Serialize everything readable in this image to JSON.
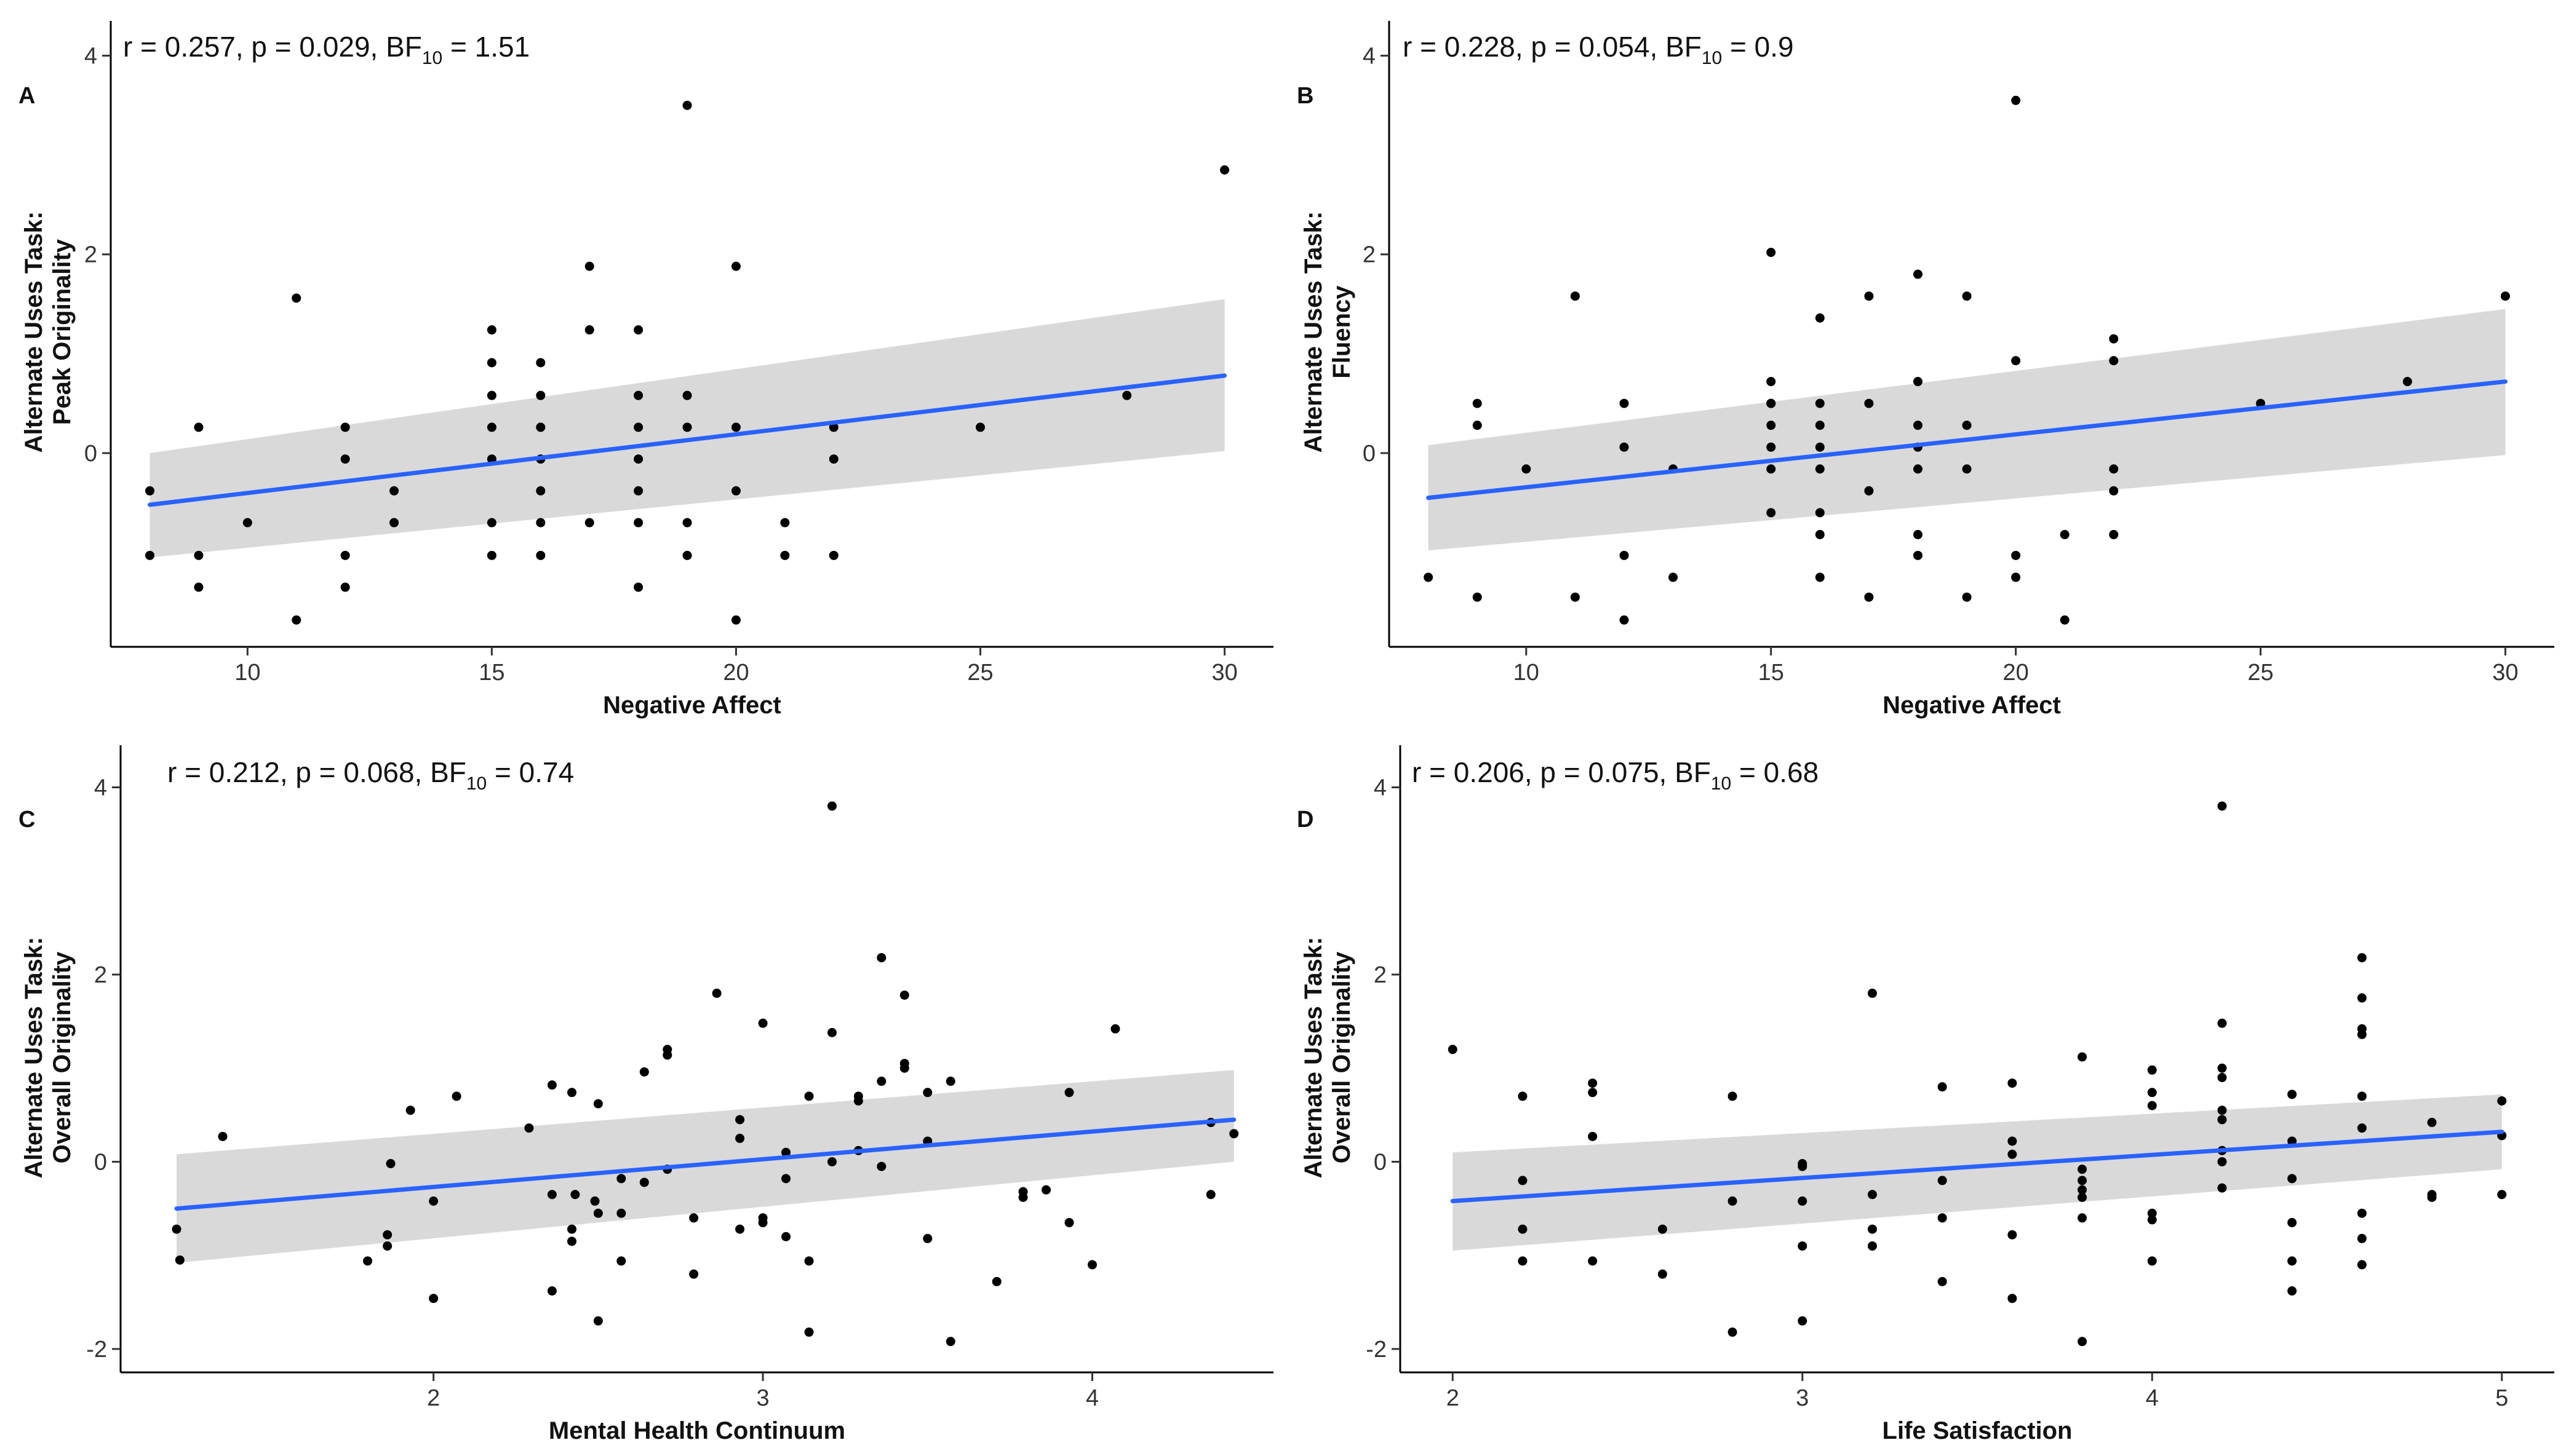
{
  "chart_data": [
    {
      "type": "scatter",
      "panel": "A",
      "stats": {
        "prefix": "r = 0.257, p = 0.029,   BF",
        "sub": "10",
        "suffix": " = 1.51"
      },
      "xlabel": "Negative Affect",
      "ylabel": [
        "Alternate Uses Task:",
        "Peak Originality"
      ],
      "xlim": [
        7.2,
        31.0
      ],
      "ylim": [
        -1.95,
        4.35
      ],
      "xticks": [
        10,
        15,
        20,
        25,
        30
      ],
      "yticks": [
        0,
        2,
        4
      ],
      "fit": {
        "x": [
          8,
          30
        ],
        "y": [
          -0.52,
          0.78
        ],
        "ci_lower": [
          -1.05,
          0.02
        ],
        "ci_upper": [
          0.0,
          1.55
        ],
        "color": "#2962ff"
      },
      "points": [
        [
          8,
          -0.38
        ],
        [
          8,
          -1.03
        ],
        [
          9,
          0.26
        ],
        [
          9,
          -1.03
        ],
        [
          9,
          -1.35
        ],
        [
          10,
          -0.7
        ],
        [
          11,
          1.56
        ],
        [
          11,
          -1.68
        ],
        [
          12,
          0.26
        ],
        [
          12,
          -0.06
        ],
        [
          12,
          -1.03
        ],
        [
          12,
          -1.35
        ],
        [
          13,
          -0.38
        ],
        [
          13,
          -0.7
        ],
        [
          15,
          1.24
        ],
        [
          15,
          0.91
        ],
        [
          15,
          0.58
        ],
        [
          15,
          0.26
        ],
        [
          15,
          -0.06
        ],
        [
          15,
          -0.7
        ],
        [
          15,
          -1.03
        ],
        [
          16,
          0.91
        ],
        [
          16,
          0.58
        ],
        [
          16,
          0.26
        ],
        [
          16,
          -0.06
        ],
        [
          16,
          -0.38
        ],
        [
          16,
          -0.7
        ],
        [
          16,
          -1.03
        ],
        [
          17,
          1.88
        ],
        [
          17,
          1.24
        ],
        [
          17,
          -0.7
        ],
        [
          18,
          1.24
        ],
        [
          18,
          0.58
        ],
        [
          18,
          0.26
        ],
        [
          18,
          -0.06
        ],
        [
          18,
          -0.38
        ],
        [
          18,
          -0.7
        ],
        [
          18,
          -1.35
        ],
        [
          19,
          3.5
        ],
        [
          19,
          0.58
        ],
        [
          19,
          0.26
        ],
        [
          19,
          -0.7
        ],
        [
          19,
          -1.03
        ],
        [
          20,
          1.88
        ],
        [
          20,
          0.26
        ],
        [
          20,
          -0.38
        ],
        [
          20,
          -1.68
        ],
        [
          21,
          -0.7
        ],
        [
          21,
          -1.03
        ],
        [
          22,
          0.26
        ],
        [
          22,
          -0.06
        ],
        [
          22,
          -1.03
        ],
        [
          25,
          0.26
        ],
        [
          28,
          0.58
        ],
        [
          30,
          2.85
        ]
      ]
    },
    {
      "type": "scatter",
      "panel": "B",
      "stats": {
        "prefix": "r = 0.228, p = 0.054,   BF",
        "sub": "10",
        "suffix": " = 0.9"
      },
      "xlabel": "Negative Affect",
      "ylabel": [
        "Alternate Uses Task:",
        "Fluency"
      ],
      "xlim": [
        7.2,
        31.0
      ],
      "ylim": [
        -1.95,
        4.35
      ],
      "xticks": [
        10,
        15,
        20,
        25,
        30
      ],
      "yticks": [
        0,
        2,
        4
      ],
      "fit": {
        "x": [
          8,
          30
        ],
        "y": [
          -0.45,
          0.72
        ],
        "ci_lower": [
          -0.98,
          -0.02
        ],
        "ci_upper": [
          0.08,
          1.45
        ],
        "color": "#2962ff"
      },
      "points": [
        [
          8,
          -1.25
        ],
        [
          9,
          0.5
        ],
        [
          9,
          0.28
        ],
        [
          9,
          -1.45
        ],
        [
          10,
          -0.16
        ],
        [
          11,
          1.58
        ],
        [
          11,
          -1.45
        ],
        [
          12,
          0.5
        ],
        [
          12,
          0.06
        ],
        [
          12,
          -1.03
        ],
        [
          12,
          -1.68
        ],
        [
          13,
          -0.16
        ],
        [
          13,
          -1.25
        ],
        [
          15,
          2.02
        ],
        [
          15,
          0.72
        ],
        [
          15,
          0.5
        ],
        [
          15,
          0.5
        ],
        [
          15,
          0.28
        ],
        [
          15,
          0.06
        ],
        [
          15,
          -0.16
        ],
        [
          15,
          -0.6
        ],
        [
          16,
          1.36
        ],
        [
          16,
          0.5
        ],
        [
          16,
          0.28
        ],
        [
          16,
          0.06
        ],
        [
          16,
          -0.16
        ],
        [
          16,
          -0.6
        ],
        [
          16,
          -0.82
        ],
        [
          16,
          -1.25
        ],
        [
          17,
          1.58
        ],
        [
          17,
          0.5
        ],
        [
          17,
          -0.38
        ],
        [
          17,
          -1.45
        ],
        [
          18,
          1.8
        ],
        [
          18,
          0.72
        ],
        [
          18,
          0.28
        ],
        [
          18,
          0.06
        ],
        [
          18,
          -0.16
        ],
        [
          18,
          -0.82
        ],
        [
          18,
          -1.03
        ],
        [
          19,
          1.58
        ],
        [
          19,
          0.28
        ],
        [
          19,
          -0.16
        ],
        [
          19,
          -1.45
        ],
        [
          20,
          3.55
        ],
        [
          20,
          0.93
        ],
        [
          20,
          -1.03
        ],
        [
          20,
          -1.25
        ],
        [
          21,
          -0.82
        ],
        [
          21,
          -1.68
        ],
        [
          22,
          1.15
        ],
        [
          22,
          0.93
        ],
        [
          22,
          -0.16
        ],
        [
          22,
          -0.38
        ],
        [
          22,
          -0.82
        ],
        [
          25,
          0.5
        ],
        [
          28,
          0.72
        ],
        [
          30,
          1.58
        ]
      ]
    },
    {
      "type": "scatter",
      "panel": "C",
      "stats": {
        "prefix": "r = 0.212, p = 0.068,  BF",
        "sub": "10",
        "suffix": " = 0.74"
      },
      "xlabel": "Mental Health Continuum",
      "ylabel": [
        "Alternate Uses Task:",
        "Overall Originality"
      ],
      "xlim": [
        1.05,
        4.55
      ],
      "ylim": [
        -2.25,
        4.45
      ],
      "xticks": [
        2,
        3,
        4
      ],
      "yticks": [
        -2,
        0,
        2,
        4
      ],
      "fit": {
        "x": [
          1.22,
          4.43
        ],
        "y": [
          -0.5,
          0.45
        ],
        "ci_lower": [
          -1.08,
          0.0
        ],
        "ci_upper": [
          0.08,
          0.98
        ],
        "color": "#2962ff"
      },
      "points": [
        [
          1.22,
          -0.72
        ],
        [
          1.23,
          -1.05
        ],
        [
          1.36,
          0.27
        ],
        [
          1.8,
          -1.06
        ],
        [
          1.86,
          -0.78
        ],
        [
          1.86,
          -0.9
        ],
        [
          1.87,
          -0.02
        ],
        [
          1.93,
          0.55
        ],
        [
          2.0,
          -1.46
        ],
        [
          2.0,
          -0.42
        ],
        [
          2.07,
          0.7
        ],
        [
          2.29,
          0.36
        ],
        [
          2.36,
          0.82
        ],
        [
          2.36,
          -0.35
        ],
        [
          2.36,
          -1.38
        ],
        [
          2.42,
          -0.72
        ],
        [
          2.42,
          -0.85
        ],
        [
          2.42,
          0.74
        ],
        [
          2.43,
          -0.35
        ],
        [
          2.49,
          -0.42
        ],
        [
          2.5,
          -0.55
        ],
        [
          2.5,
          -1.7
        ],
        [
          2.5,
          0.62
        ],
        [
          2.57,
          -1.06
        ],
        [
          2.57,
          -0.55
        ],
        [
          2.57,
          -0.18
        ],
        [
          2.64,
          -0.22
        ],
        [
          2.64,
          0.96
        ],
        [
          2.71,
          1.2
        ],
        [
          2.71,
          1.14
        ],
        [
          2.71,
          -0.08
        ],
        [
          2.79,
          -0.6
        ],
        [
          2.79,
          -1.2
        ],
        [
          2.86,
          1.8
        ],
        [
          2.93,
          -0.72
        ],
        [
          2.93,
          0.45
        ],
        [
          2.93,
          0.25
        ],
        [
          3.0,
          1.48
        ],
        [
          3.0,
          -0.6
        ],
        [
          3.0,
          -0.65
        ],
        [
          3.07,
          0.1
        ],
        [
          3.07,
          -0.18
        ],
        [
          3.07,
          -0.8
        ],
        [
          3.14,
          -1.82
        ],
        [
          3.14,
          -1.06
        ],
        [
          3.14,
          0.7
        ],
        [
          3.21,
          3.8
        ],
        [
          3.21,
          1.38
        ],
        [
          3.21,
          0.0
        ],
        [
          3.29,
          0.65
        ],
        [
          3.29,
          0.7
        ],
        [
          3.29,
          0.12
        ],
        [
          3.36,
          2.18
        ],
        [
          3.36,
          0.86
        ],
        [
          3.36,
          -0.05
        ],
        [
          3.43,
          1.78
        ],
        [
          3.43,
          1.05
        ],
        [
          3.43,
          1.0
        ],
        [
          3.5,
          0.74
        ],
        [
          3.5,
          0.22
        ],
        [
          3.5,
          -0.82
        ],
        [
          3.57,
          -1.92
        ],
        [
          3.57,
          0.86
        ],
        [
          3.71,
          -1.28
        ],
        [
          3.79,
          -0.32
        ],
        [
          3.79,
          -0.38
        ],
        [
          3.86,
          -0.3
        ],
        [
          3.93,
          0.74
        ],
        [
          3.93,
          -0.65
        ],
        [
          4.0,
          -1.1
        ],
        [
          4.07,
          1.42
        ],
        [
          4.36,
          0.42
        ],
        [
          4.36,
          -0.35
        ],
        [
          4.43,
          0.3
        ]
      ]
    },
    {
      "type": "scatter",
      "panel": "D",
      "stats": {
        "prefix": "r = 0.206, p = 0.075,  BF",
        "sub": "10",
        "suffix": " = 0.68"
      },
      "xlabel": "Life Satisfaction",
      "ylabel": [
        "Alternate Uses Task:",
        "Overall Originality"
      ],
      "xlim": [
        1.85,
        5.15
      ],
      "ylim": [
        -2.25,
        4.45
      ],
      "xticks": [
        2,
        3,
        4,
        5
      ],
      "yticks": [
        -2,
        0,
        2,
        4
      ],
      "fit": {
        "x": [
          2,
          5
        ],
        "y": [
          -0.42,
          0.32
        ],
        "ci_lower": [
          -0.95,
          -0.08
        ],
        "ci_upper": [
          0.1,
          0.72
        ],
        "color": "#2962ff"
      },
      "points": [
        [
          2.0,
          1.2
        ],
        [
          2.2,
          0.7
        ],
        [
          2.2,
          -0.2
        ],
        [
          2.2,
          -0.72
        ],
        [
          2.2,
          -1.06
        ],
        [
          2.4,
          0.84
        ],
        [
          2.4,
          0.74
        ],
        [
          2.4,
          0.27
        ],
        [
          2.4,
          -1.06
        ],
        [
          2.6,
          -0.72
        ],
        [
          2.6,
          -1.2
        ],
        [
          2.8,
          0.7
        ],
        [
          2.8,
          -0.42
        ],
        [
          2.8,
          -1.82
        ],
        [
          3.0,
          -0.05
        ],
        [
          3.0,
          -0.02
        ],
        [
          3.0,
          -0.42
        ],
        [
          3.0,
          -0.9
        ],
        [
          3.0,
          -1.7
        ],
        [
          3.2,
          1.8
        ],
        [
          3.2,
          -0.35
        ],
        [
          3.2,
          -0.72
        ],
        [
          3.2,
          -0.9
        ],
        [
          3.4,
          0.8
        ],
        [
          3.4,
          -0.2
        ],
        [
          3.4,
          -0.6
        ],
        [
          3.4,
          -1.28
        ],
        [
          3.6,
          0.84
        ],
        [
          3.6,
          0.22
        ],
        [
          3.6,
          0.08
        ],
        [
          3.6,
          -0.78
        ],
        [
          3.6,
          -1.46
        ],
        [
          3.8,
          1.12
        ],
        [
          3.8,
          -0.08
        ],
        [
          3.8,
          -0.3
        ],
        [
          3.8,
          -0.38
        ],
        [
          3.8,
          -0.6
        ],
        [
          3.8,
          -1.92
        ],
        [
          3.8,
          -0.2
        ],
        [
          4.0,
          0.98
        ],
        [
          4.0,
          0.74
        ],
        [
          4.0,
          0.6
        ],
        [
          4.0,
          -0.55
        ],
        [
          4.0,
          -0.62
        ],
        [
          4.0,
          -1.06
        ],
        [
          4.2,
          3.8
        ],
        [
          4.2,
          1.48
        ],
        [
          4.2,
          1.0
        ],
        [
          4.2,
          0.9
        ],
        [
          4.2,
          0.55
        ],
        [
          4.2,
          0.45
        ],
        [
          4.2,
          0.12
        ],
        [
          4.2,
          0.0
        ],
        [
          4.2,
          -0.28
        ],
        [
          4.4,
          0.72
        ],
        [
          4.4,
          0.22
        ],
        [
          4.4,
          -0.18
        ],
        [
          4.4,
          -0.65
        ],
        [
          4.4,
          -1.06
        ],
        [
          4.4,
          -1.38
        ],
        [
          4.6,
          2.18
        ],
        [
          4.6,
          1.75
        ],
        [
          4.6,
          1.42
        ],
        [
          4.6,
          1.36
        ],
        [
          4.6,
          0.7
        ],
        [
          4.6,
          0.36
        ],
        [
          4.6,
          -0.55
        ],
        [
          4.6,
          -0.82
        ],
        [
          4.6,
          -1.1
        ],
        [
          4.8,
          0.42
        ],
        [
          4.8,
          -0.35
        ],
        [
          4.8,
          -0.38
        ],
        [
          5.0,
          0.65
        ],
        [
          5.0,
          0.28
        ],
        [
          5.0,
          -0.35
        ]
      ]
    }
  ]
}
